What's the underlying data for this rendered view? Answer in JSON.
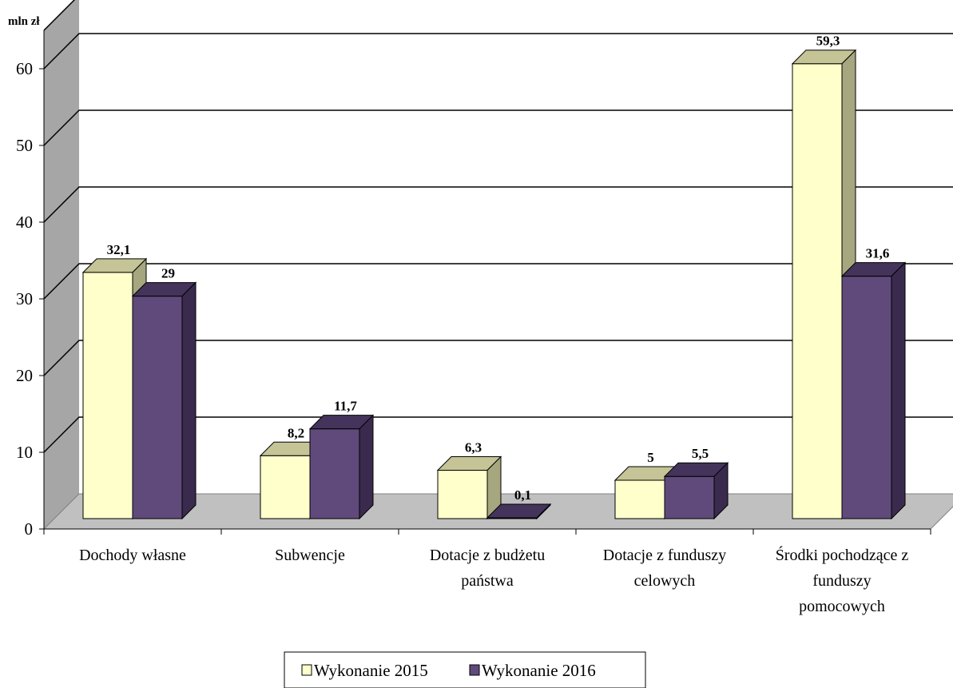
{
  "chart_data": {
    "type": "bar",
    "ylabel": "mln zł",
    "ylim": [
      0,
      60
    ],
    "yticks": [
      0,
      10,
      20,
      30,
      40,
      50,
      60
    ],
    "grid": true,
    "legend_position": "bottom",
    "categories": [
      [
        "Dochody własne"
      ],
      [
        "Subwencje"
      ],
      [
        "Dotacje z budżetu",
        "państwa"
      ],
      [
        "Dotacje z funduszy",
        "celowych"
      ],
      [
        "Środki pochodzące z",
        "funduszy",
        "pomocowych"
      ]
    ],
    "series": [
      {
        "name": "Wykonanie 2015",
        "values": [
          32.1,
          8.2,
          6.3,
          5,
          59.3
        ],
        "labels": [
          "32,1",
          "8,2",
          "6,3",
          "5",
          "59,3"
        ],
        "color": "#FFFFCC"
      },
      {
        "name": "Wykonanie 2016",
        "values": [
          29,
          11.7,
          0.1,
          5.5,
          31.6
        ],
        "labels": [
          "29",
          "11,7",
          "0,1",
          "5,5",
          "31,6"
        ],
        "color": "#604A7B"
      }
    ]
  }
}
